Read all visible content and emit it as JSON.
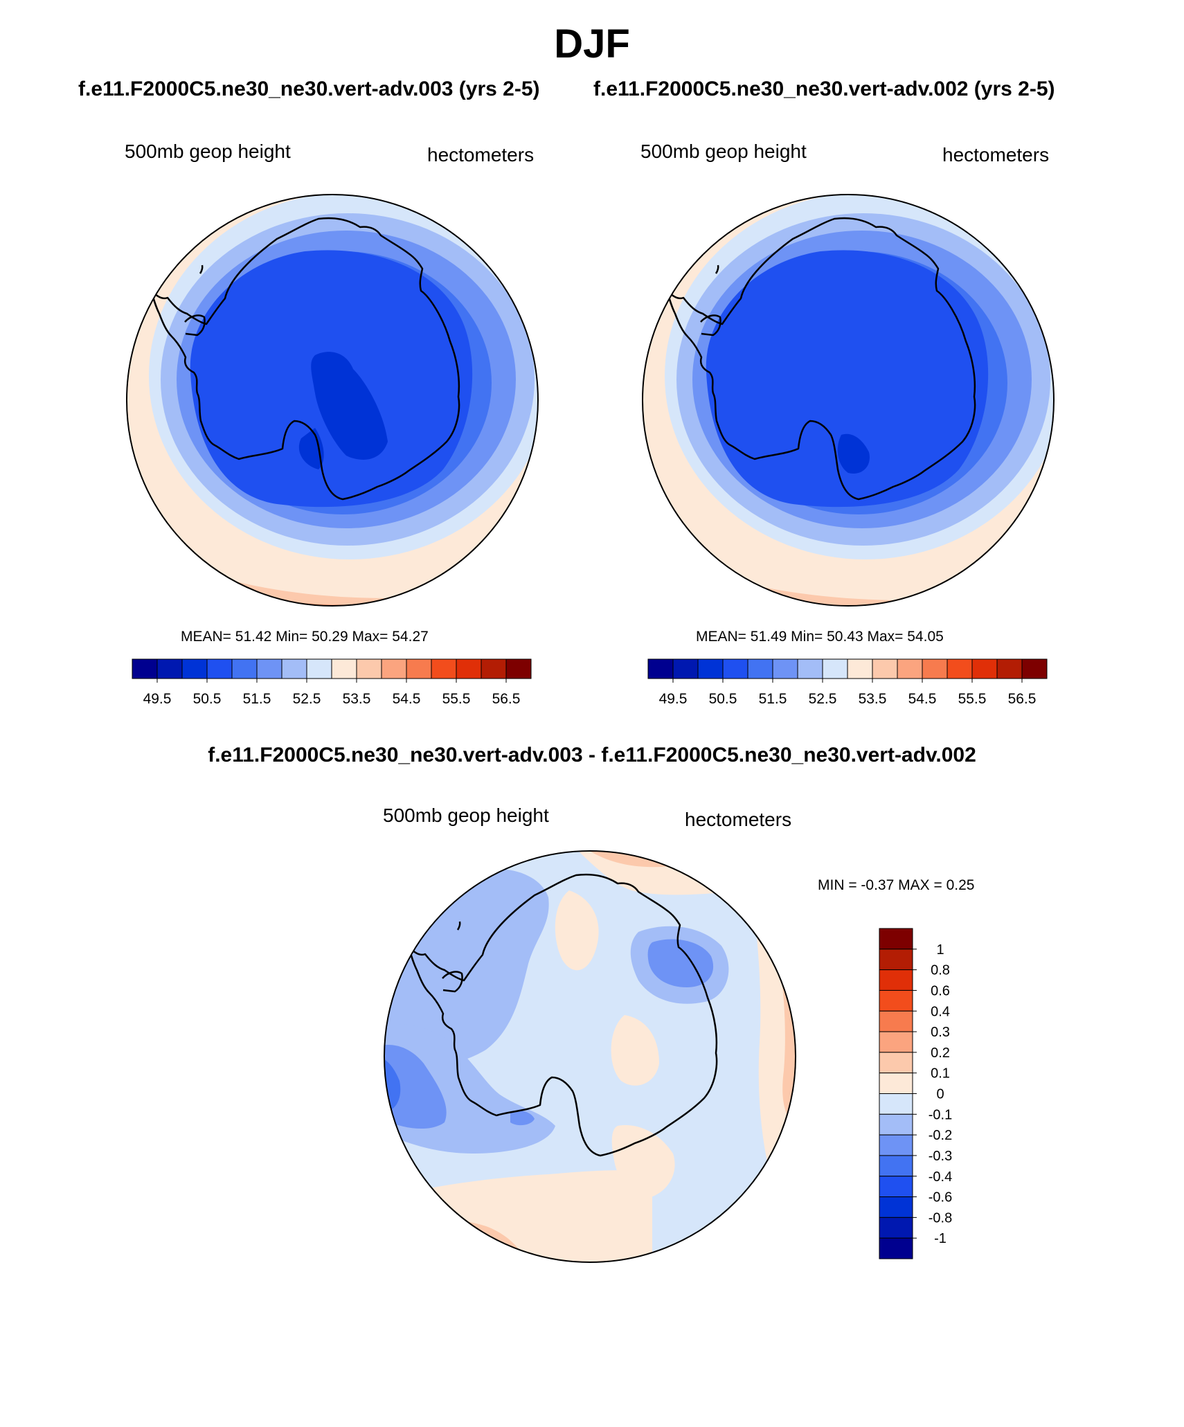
{
  "figure": {
    "title": "DJF",
    "case_a_title": "f.e11.F2000C5.ne30_ne30.vert-adv.003 (yrs 2-5)",
    "case_b_title": "f.e11.F2000C5.ne30_ne30.vert-adv.002 (yrs 2-5)",
    "diff_title": "f.e11.F2000C5.ne30_ne30.vert-adv.003 - f.e11.F2000C5.ne30_ne30.vert-adv.002"
  },
  "panels": {
    "a": {
      "variable": "500mb geop height",
      "units": "hectometers",
      "stats": "MEAN=  51.42  Min=  50.29  Max=  54.27"
    },
    "b": {
      "variable": "500mb geop height",
      "units": "hectometers",
      "stats": "MEAN=  51.49  Min=  50.43  Max=  54.05"
    },
    "diff": {
      "variable": "500mb geop height",
      "units": "hectometers",
      "stats": "MIN =  -0.37 MAX =   0.25"
    }
  },
  "colorbar_main": {
    "colors": [
      "#00008f",
      "#0018b0",
      "#0033d6",
      "#1f50f0",
      "#4273f2",
      "#6e93f5",
      "#a3bdf7",
      "#d6e6fa",
      "#fde9d8",
      "#fcc9ac",
      "#fba47f",
      "#f77b4e",
      "#f24d1c",
      "#e02f08",
      "#b31d04",
      "#7d0000"
    ],
    "labels": [
      "49.5",
      "50.5",
      "51.5",
      "52.5",
      "53.5",
      "54.5",
      "55.5",
      "56.5"
    ]
  },
  "colorbar_diff": {
    "colors": [
      "#00008f",
      "#0018b0",
      "#0033d6",
      "#1f50f0",
      "#4273f2",
      "#6e93f5",
      "#a3bdf7",
      "#d6e6fa",
      "#fde9d8",
      "#fcc9ac",
      "#fba47f",
      "#f77b4e",
      "#f24d1c",
      "#e02f08",
      "#b31d04",
      "#7d0000"
    ],
    "labels": [
      "1",
      "0.8",
      "0.6",
      "0.4",
      "0.3",
      "0.2",
      "0.1",
      "0",
      "-0.1",
      "-0.2",
      "-0.3",
      "-0.4",
      "-0.6",
      "-0.8",
      "-1"
    ]
  },
  "chart_data": [
    {
      "type": "polar_stereographic_contour",
      "region": "Antarctica",
      "season": "DJF",
      "title": "f.e11.F2000C5.ne30_ne30.vert-adv.003 (yrs 2-5)",
      "variable": "500mb geop height",
      "units": "hectometers",
      "mean": 51.42,
      "min": 50.29,
      "max": 54.27,
      "contour_levels": [
        49.5,
        50.0,
        50.5,
        51.0,
        51.5,
        52.0,
        52.5,
        53.0,
        53.5,
        54.0,
        54.5,
        55.0,
        55.5,
        56.0,
        56.5
      ]
    },
    {
      "type": "polar_stereographic_contour",
      "region": "Antarctica",
      "season": "DJF",
      "title": "f.e11.F2000C5.ne30_ne30.vert-adv.002 (yrs 2-5)",
      "variable": "500mb geop height",
      "units": "hectometers",
      "mean": 51.49,
      "min": 50.43,
      "max": 54.05,
      "contour_levels": [
        49.5,
        50.0,
        50.5,
        51.0,
        51.5,
        52.0,
        52.5,
        53.0,
        53.5,
        54.0,
        54.5,
        55.0,
        55.5,
        56.0,
        56.5
      ]
    },
    {
      "type": "polar_stereographic_contour",
      "region": "Antarctica",
      "season": "DJF",
      "title": "f.e11.F2000C5.ne30_ne30.vert-adv.003 - f.e11.F2000C5.ne30_ne30.vert-adv.002",
      "variable": "500mb geop height",
      "units": "hectometers",
      "min": -0.37,
      "max": 0.25,
      "contour_levels": [
        -1,
        -0.8,
        -0.6,
        -0.4,
        -0.3,
        -0.2,
        -0.1,
        0,
        0.1,
        0.2,
        0.3,
        0.4,
        0.6,
        0.8,
        1
      ]
    }
  ]
}
